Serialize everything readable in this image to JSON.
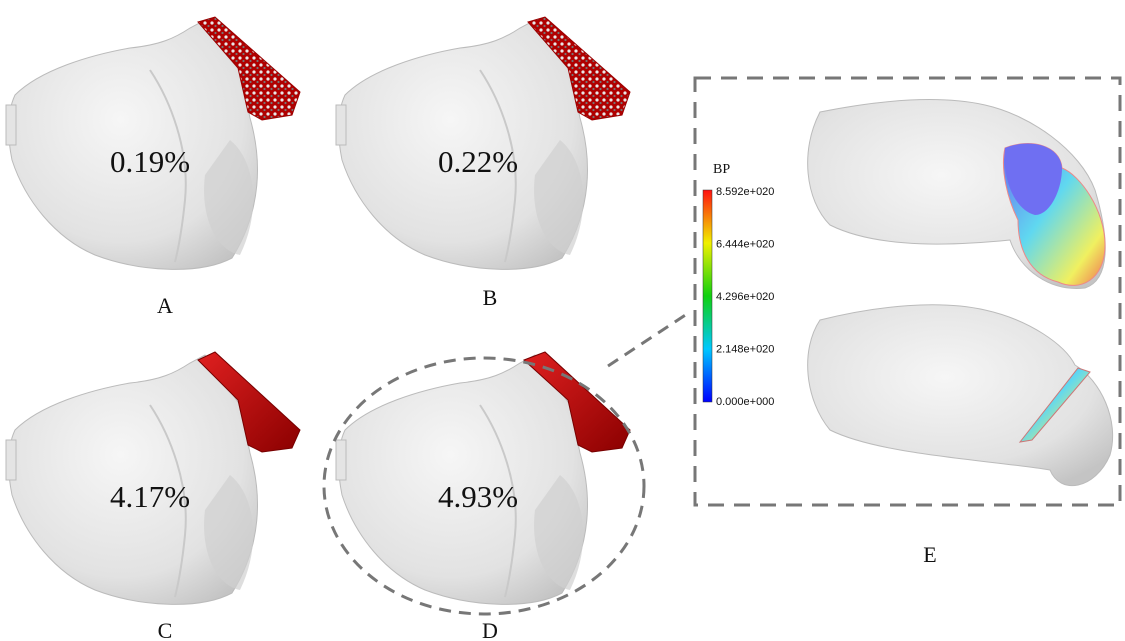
{
  "panels": [
    {
      "label": "A",
      "percent": "0.19%"
    },
    {
      "label": "B",
      "percent": "0.22%"
    },
    {
      "label": "C",
      "percent": "4.17%"
    },
    {
      "label": "D",
      "percent": "4.93%"
    }
  ],
  "panel_e": {
    "label": "E",
    "colorbar": {
      "title": "BP",
      "ticks": [
        "8.592e+020",
        "6.444e+020",
        "4.296e+020",
        "2.148e+020",
        "0.000e+000"
      ]
    }
  }
}
